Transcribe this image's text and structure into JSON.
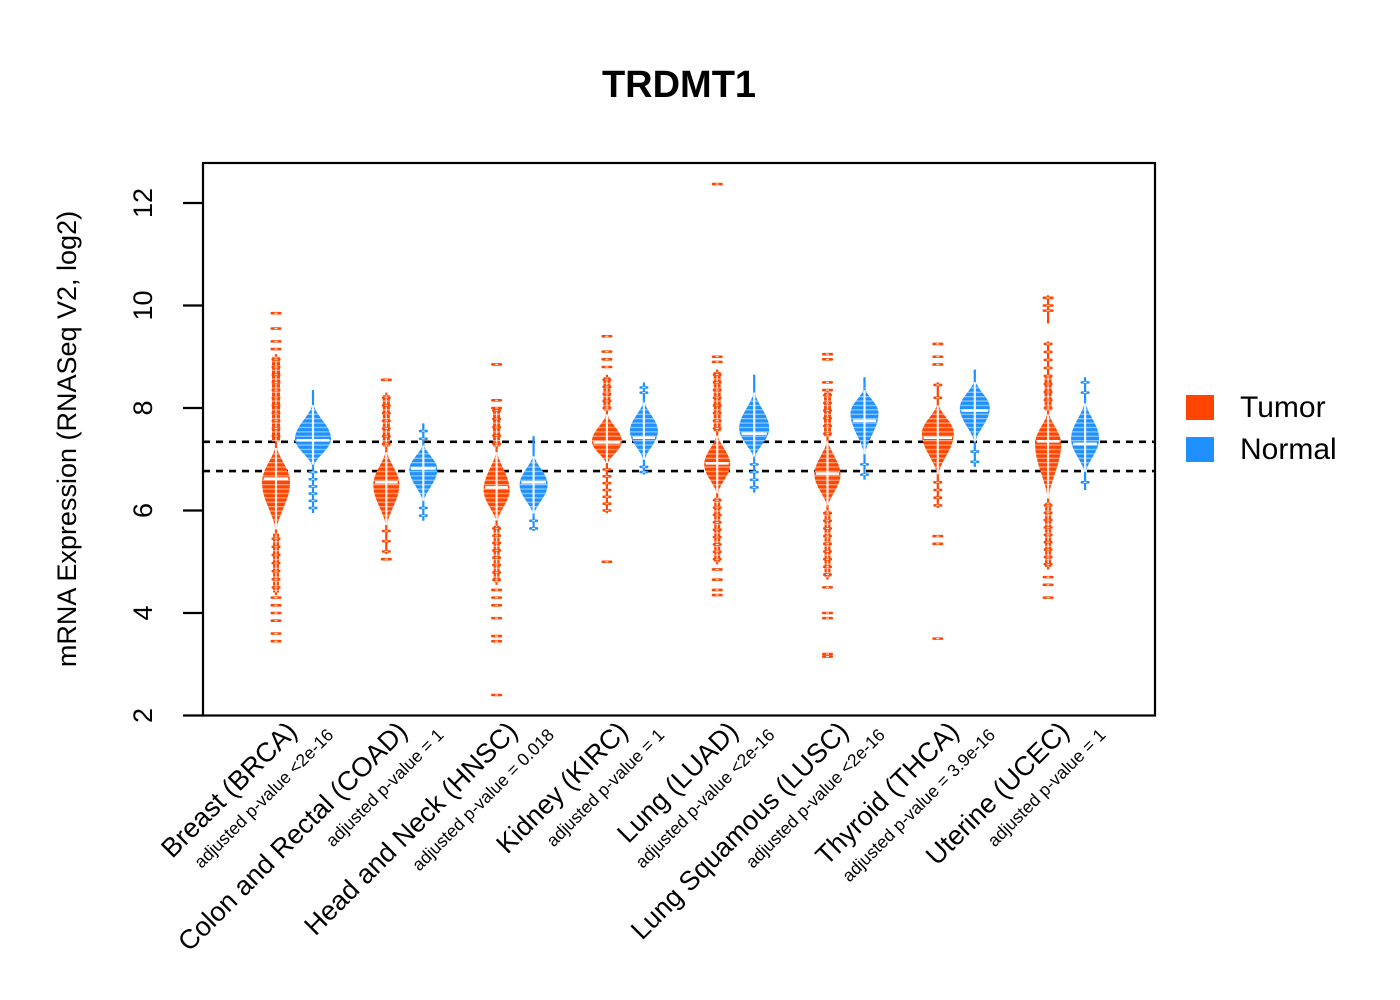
{
  "chart_data": {
    "type": "violin",
    "title": "TRDMT1",
    "ylabel": "mRNA Expression (RNASeq V2, log2)",
    "xlabel": "",
    "ylim": [
      2,
      12.75
    ],
    "yticks": [
      2,
      4,
      6,
      8,
      10,
      12
    ],
    "grid": false,
    "legend_position": "right-outside",
    "reference_lines": {
      "style": "dashed",
      "color": "#000000",
      "values": [
        7.34,
        6.77
      ]
    },
    "legend": [
      {
        "label": "Tumor",
        "color": "#FF4500"
      },
      {
        "label": "Normal",
        "color": "#1E90FF"
      }
    ],
    "groups": [
      {
        "label": "Breast (BRCA)",
        "pvalue_label": "adjusted p-value <2e-16",
        "tumor": {
          "median": 6.62,
          "stems": [
            [
              4.35,
              9.05
            ]
          ],
          "columns": [
            [
              7.35,
              9.0,
              4
            ],
            [
              4.4,
              5.55,
              3
            ]
          ],
          "beads": [
            [
              7.45,
              8.95,
              11
            ],
            [
              4.5,
              5.45,
              7
            ]
          ],
          "bulge": [
            5.5,
            6.55,
            7.35,
            14
          ],
          "outliers": [
            9.85,
            9.55,
            9.3,
            9.15,
            4.3,
            4.15,
            4.0,
            3.85,
            3.6,
            3.45
          ]
        },
        "normal": {
          "median": 7.37,
          "stems": [
            [
              5.95,
              8.35
            ]
          ],
          "columns": [],
          "beads": [
            [
              6.05,
              6.75,
              6
            ]
          ],
          "bulge": [
            6.8,
            7.4,
            8.15,
            18
          ],
          "outliers": []
        }
      },
      {
        "label": "Colon and Rectal (COAD)",
        "pvalue_label": "adjusted p-value = 1",
        "tumor": {
          "median": 6.55,
          "stems": [
            [
              5.15,
              8.3
            ]
          ],
          "columns": [
            [
              7.25,
              8.25,
              3.5
            ]
          ],
          "beads": [
            [
              7.3,
              8.2,
              7
            ],
            [
              5.2,
              5.6,
              3
            ]
          ],
          "bulge": [
            5.6,
            6.5,
            7.25,
            13
          ],
          "outliers": [
            8.55,
            5.05
          ]
        },
        "normal": {
          "median": 6.82,
          "stems": [
            [
              5.8,
              7.7
            ]
          ],
          "columns": [],
          "beads": [
            [
              7.4,
              7.55,
              2
            ],
            [
              5.9,
              6.05,
              2
            ]
          ],
          "bulge": [
            6.1,
            6.8,
            7.35,
            14
          ],
          "outliers": []
        }
      },
      {
        "label": "Head and Neck (HNSC)",
        "pvalue_label": "adjusted p-value = 0.018",
        "tumor": {
          "median": 6.45,
          "stems": [
            [
              4.55,
              8.0
            ]
          ],
          "columns": [
            [
              7.25,
              8.0,
              3.5
            ],
            [
              4.6,
              5.7,
              3
            ]
          ],
          "beads": [
            [
              7.3,
              7.95,
              5
            ],
            [
              4.65,
              5.65,
              8
            ]
          ],
          "bulge": [
            5.7,
            6.4,
            7.25,
            13
          ],
          "outliers": [
            8.85,
            8.15,
            8.0,
            4.45,
            4.3,
            4.15,
            3.9,
            3.55,
            3.45,
            2.4
          ]
        },
        "normal": {
          "median": 6.55,
          "stems": [
            [
              5.6,
              7.45
            ]
          ],
          "columns": [],
          "beads": [
            [
              5.65,
              5.8,
              2
            ]
          ],
          "bulge": [
            5.85,
            6.5,
            7.15,
            14
          ],
          "outliers": []
        }
      },
      {
        "label": "Kidney (KIRC)",
        "pvalue_label": "adjusted p-value = 1",
        "tumor": {
          "median": 7.33,
          "stems": [
            [
              5.95,
              8.65
            ]
          ],
          "columns": [
            [
              7.95,
              8.6,
              3.5
            ]
          ],
          "beads": [
            [
              8.0,
              8.55,
              5
            ],
            [
              6.0,
              6.8,
              7
            ]
          ],
          "bulge": [
            6.85,
            7.35,
            7.95,
            15
          ],
          "outliers": [
            9.4,
            9.1,
            8.95,
            8.8,
            5.0
          ]
        },
        "normal": {
          "median": 7.42,
          "stems": [
            [
              6.7,
              8.5
            ]
          ],
          "columns": [],
          "beads": [
            [
              8.3,
              8.4,
              2
            ],
            [
              6.75,
              6.85,
              2
            ]
          ],
          "bulge": [
            6.9,
            7.55,
            8.2,
            14
          ],
          "outliers": []
        }
      },
      {
        "label": "Lung (LUAD)",
        "pvalue_label": "adjusted p-value <2e-16",
        "tumor": {
          "median": 6.92,
          "stems": [
            [
              4.95,
              8.75
            ]
          ],
          "columns": [
            [
              7.55,
              8.7,
              3.5
            ],
            [
              5.0,
              6.25,
              3
            ]
          ],
          "beads": [
            [
              7.6,
              8.65,
              8
            ],
            [
              5.05,
              6.2,
              9
            ]
          ],
          "bulge": [
            6.25,
            6.9,
            7.55,
            13
          ],
          "outliers": [
            12.37,
            9.0,
            8.9,
            4.85,
            4.65,
            4.45,
            4.35
          ]
        },
        "normal": {
          "median": 7.5,
          "stems": [
            [
              6.35,
              8.65
            ]
          ],
          "columns": [],
          "beads": [
            [
              6.45,
              6.9,
              4
            ]
          ],
          "bulge": [
            6.95,
            7.6,
            8.4,
            15
          ],
          "outliers": []
        }
      },
      {
        "label": "Lung Squamous (LUSC)",
        "pvalue_label": "adjusted p-value <2e-16",
        "tumor": {
          "median": 6.72,
          "stems": [
            [
              4.65,
              8.35
            ]
          ],
          "columns": [
            [
              7.45,
              8.3,
              3.5
            ],
            [
              4.7,
              6.0,
              3
            ]
          ],
          "beads": [
            [
              7.5,
              8.25,
              6
            ],
            [
              4.75,
              5.95,
              9
            ]
          ],
          "bulge": [
            6.0,
            6.7,
            7.45,
            13
          ],
          "outliers": [
            9.05,
            8.95,
            8.5,
            8.35,
            4.5,
            4.0,
            3.9,
            3.2,
            3.15
          ]
        },
        "normal": {
          "median": 7.75,
          "stems": [
            [
              6.6,
              8.6
            ]
          ],
          "columns": [],
          "beads": [
            [
              6.7,
              6.9,
              2
            ]
          ],
          "bulge": [
            7.0,
            7.9,
            8.45,
            14
          ],
          "outliers": []
        }
      },
      {
        "label": "Thyroid (THCA)",
        "pvalue_label": "adjusted p-value = 3.9e-16",
        "tumor": {
          "median": 7.42,
          "stems": [
            [
              6.05,
              8.5
            ]
          ],
          "columns": [],
          "beads": [
            [
              8.2,
              8.45,
              2
            ],
            [
              6.1,
              6.55,
              4
            ]
          ],
          "bulge": [
            6.6,
            7.5,
            8.15,
            16
          ],
          "outliers": [
            9.25,
            9.0,
            8.85,
            5.5,
            5.35,
            3.5
          ]
        },
        "normal": {
          "median": 7.95,
          "stems": [
            [
              6.85,
              8.75
            ]
          ],
          "columns": [],
          "beads": [
            [
              6.95,
              7.15,
              2
            ]
          ],
          "bulge": [
            7.25,
            8.0,
            8.6,
            15
          ],
          "outliers": []
        }
      },
      {
        "label": "Uterine (UCEC)",
        "pvalue_label": "adjusted p-value = 1",
        "tumor": {
          "median": 7.35,
          "stems": [
            [
              4.85,
              9.3
            ],
            [
              9.65,
              10.2
            ]
          ],
          "columns": [
            [
              7.95,
              8.6,
              3.5
            ],
            [
              4.9,
              6.15,
              3
            ]
          ],
          "beads": [
            [
              8.0,
              9.25,
              9
            ],
            [
              4.95,
              6.1,
              9
            ]
          ],
          "bulge": [
            6.1,
            7.3,
            8.0,
            13
          ],
          "outliers": [
            10.15,
            10.0,
            9.9,
            4.7,
            4.55,
            4.3
          ]
        },
        "normal": {
          "median": 7.3,
          "stems": [
            [
              6.4,
              8.6
            ]
          ],
          "columns": [],
          "beads": [
            [
              8.3,
              8.5,
              2
            ],
            [
              6.5,
              6.6,
              1
            ]
          ],
          "bulge": [
            6.65,
            7.4,
            8.2,
            14
          ],
          "outliers": []
        }
      }
    ]
  }
}
